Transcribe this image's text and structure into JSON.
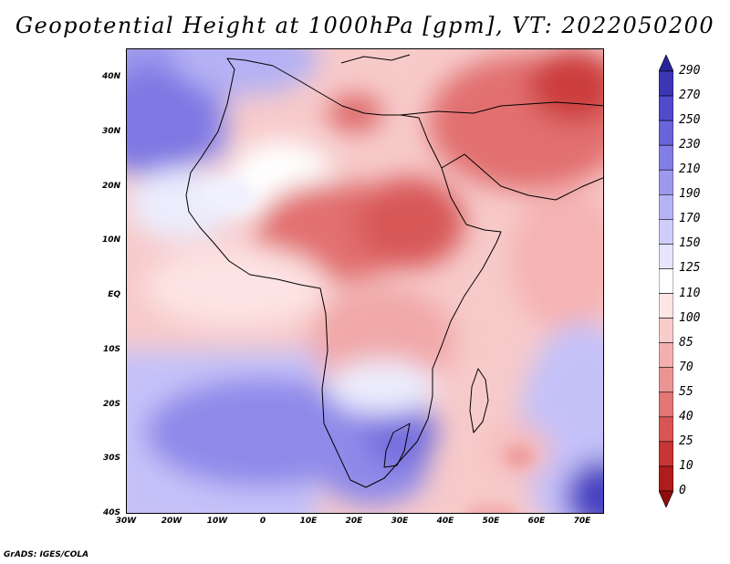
{
  "title": "Geopotential Height at 1000hPa [gpm], VT: 2022050200",
  "credit": "GrADS: IGES/COLA",
  "axes": {
    "lat_ticks": [
      "40N",
      "30N",
      "20N",
      "10N",
      "EQ",
      "10S",
      "20S",
      "30S",
      "40S"
    ],
    "lon_ticks": [
      "30W",
      "20W",
      "10W",
      "0",
      "10E",
      "20E",
      "30E",
      "40E",
      "50E",
      "60E",
      "70E"
    ]
  },
  "colorbar": {
    "labels": [
      "290",
      "270",
      "250",
      "230",
      "210",
      "190",
      "170",
      "150",
      "125",
      "110",
      "100",
      "85",
      "70",
      "55",
      "40",
      "25",
      "10",
      "0"
    ],
    "colors": [
      "#28249a",
      "#3b36b4",
      "#514bcb",
      "#6a64db",
      "#837ee6",
      "#9d99ef",
      "#b6b3f5",
      "#cfcdfa",
      "#e6e5fd",
      "#ffffff",
      "#fde6e6",
      "#f9cccc",
      "#f4b0b0",
      "#ec9494",
      "#e47676",
      "#d95555",
      "#c83535",
      "#b01b1b",
      "#8f0d0d"
    ]
  }
}
